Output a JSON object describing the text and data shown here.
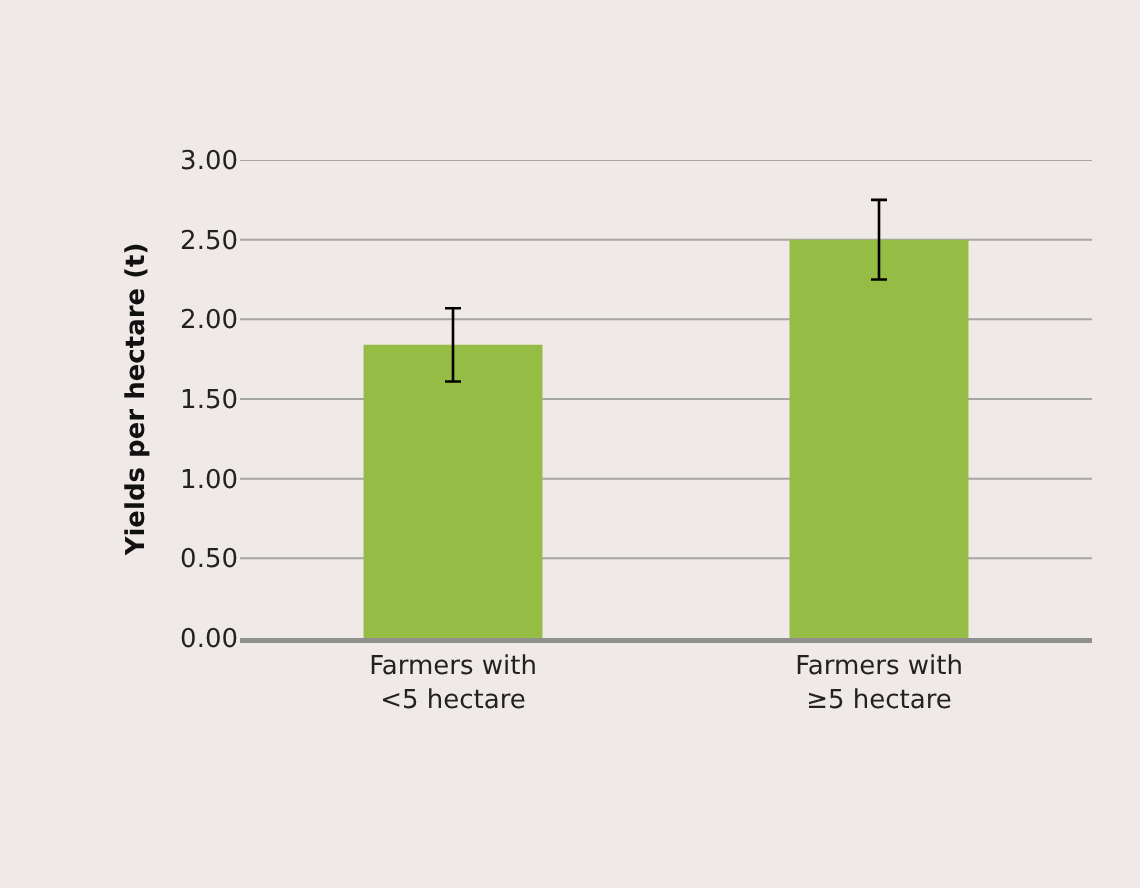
{
  "chart_data": {
    "type": "bar",
    "ylabel": "Yields per hectare (t)",
    "categories": [
      "Farmers with <5 hectare",
      "Farmers with ≥5 hectare"
    ],
    "values": [
      1.84,
      2.5
    ],
    "errors": [
      0.23,
      0.25
    ],
    "color": "#95bd45",
    "ylim": [
      0,
      3
    ],
    "yticks": [
      {
        "value": 0,
        "label": "0.00"
      },
      {
        "value": 0.5,
        "label": "0.50"
      },
      {
        "value": 1,
        "label": "1.00"
      },
      {
        "value": 1.5,
        "label": "1.50"
      },
      {
        "value": 2,
        "label": "2.00"
      },
      {
        "value": 2.5,
        "label": "2.50"
      },
      {
        "value": 3,
        "label": "3.00"
      }
    ],
    "grid": "y",
    "legend": false
  }
}
